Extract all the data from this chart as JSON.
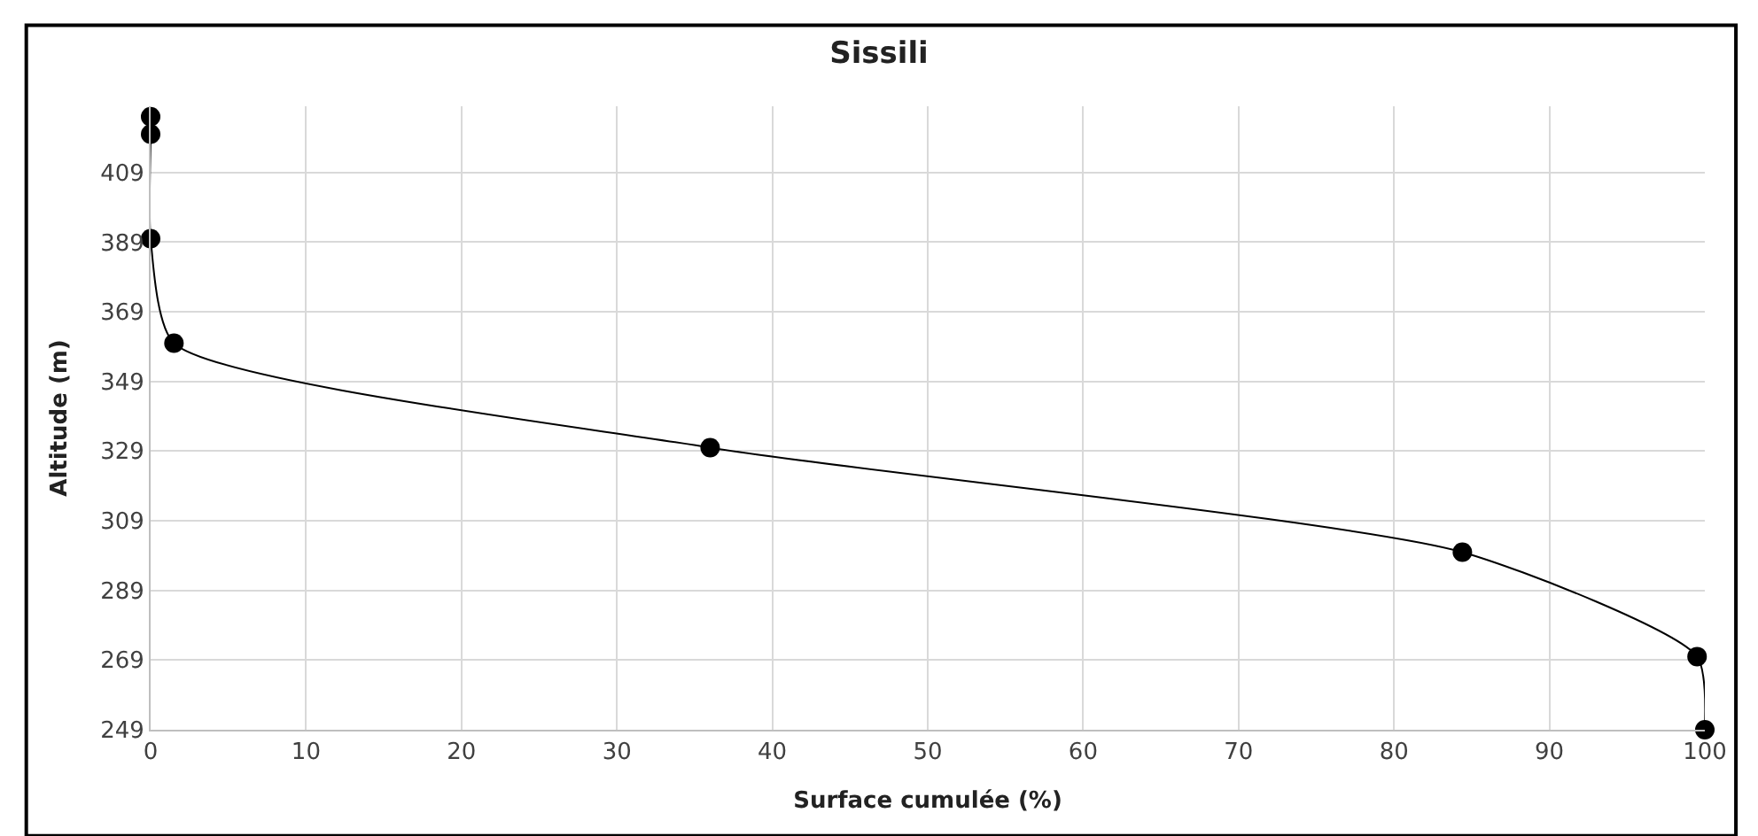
{
  "chart_data": {
    "type": "line",
    "title": "Sissili",
    "xlabel": "Surface cumulée (%)",
    "ylabel": "Altitude (m)",
    "x": [
      0,
      0,
      0,
      1.5,
      36,
      84.4,
      99.5,
      100
    ],
    "series": [
      {
        "color": "#000000",
        "values": [
          425,
          420,
          390,
          360,
          330,
          300,
          270,
          249
        ]
      }
    ],
    "line_style": "solid",
    "marker": "circle",
    "xlim": [
      0,
      100
    ],
    "xticks": [
      0,
      10,
      20,
      30,
      40,
      50,
      60,
      70,
      80,
      90,
      100
    ],
    "ylim": [
      249,
      428
    ],
    "yticks": [
      249,
      269,
      289,
      309,
      329,
      349,
      369,
      389,
      409
    ],
    "grid": true
  }
}
